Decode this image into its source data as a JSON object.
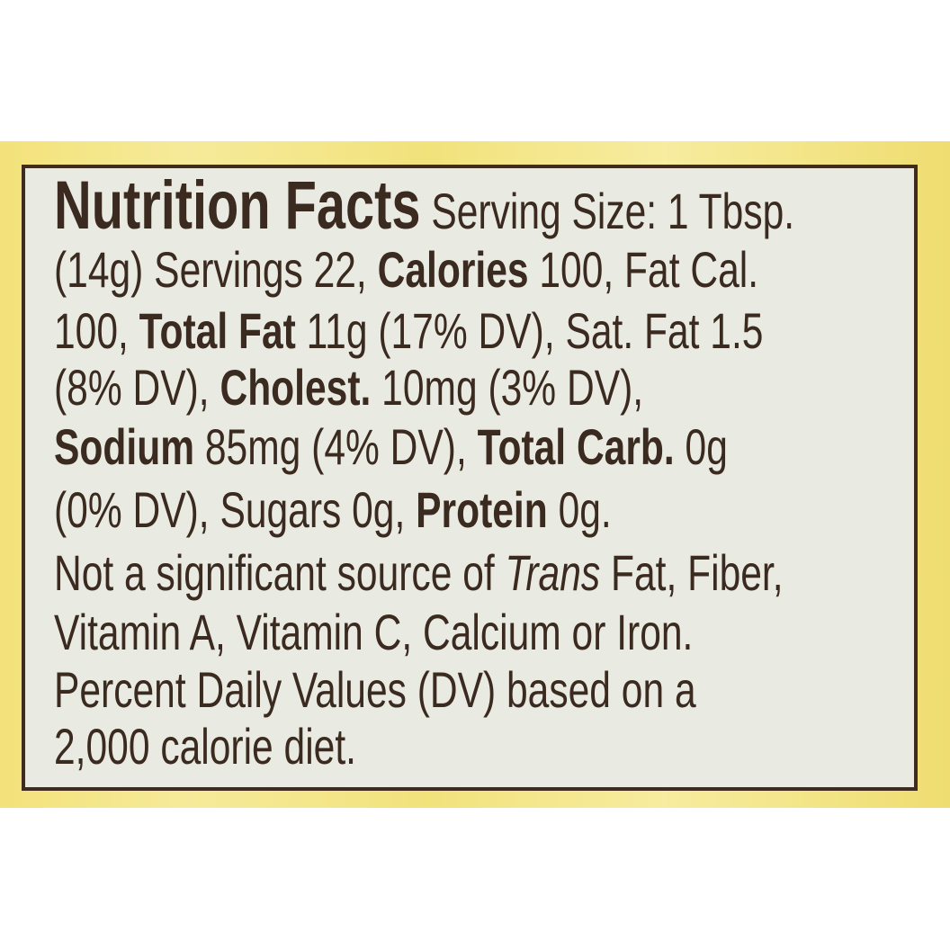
{
  "label": {
    "lines": [
      [
        {
          "text": "Nutrition Facts"
        },
        {
          "text": " Serving Size: 1 Tbsp."
        }
      ],
      [
        {
          "text": "(14g) Servings 22, "
        },
        {
          "text": "Calories"
        },
        {
          "text": " 100, Fat Cal."
        }
      ],
      [
        {
          "text": "100, "
        },
        {
          "text": "Total Fat"
        },
        {
          "text": " 11g (17% DV), Sat. Fat 1.5"
        }
      ],
      [
        {
          "text": "(8% DV), "
        },
        {
          "text": "Cholest."
        },
        {
          "text": " 10mg (3% DV),"
        }
      ],
      [
        {
          "text": "Sodium"
        },
        {
          "text": " 85mg (4% DV), "
        },
        {
          "text": "Total Carb."
        },
        {
          "text": " 0g"
        }
      ],
      [
        {
          "text": "(0% DV), Sugars 0g, "
        },
        {
          "text": "Protein"
        },
        {
          "text": " 0g."
        }
      ],
      [
        {
          "text": "Not a significant source of "
        },
        {
          "text": "Trans"
        },
        {
          "text": " Fat, Fiber,"
        }
      ],
      [
        {
          "text": "Vitamin A, Vitamin C, Calcium or Iron."
        }
      ],
      [
        {
          "text": "Percent Daily Values (DV) based on a"
        }
      ],
      [
        {
          "text": "2,000 calorie diet."
        }
      ]
    ]
  },
  "colors": {
    "text": "#3b2a1f",
    "panel": "#e9ebe3",
    "background": "#f3e27a",
    "border": "#3f2c1f"
  }
}
